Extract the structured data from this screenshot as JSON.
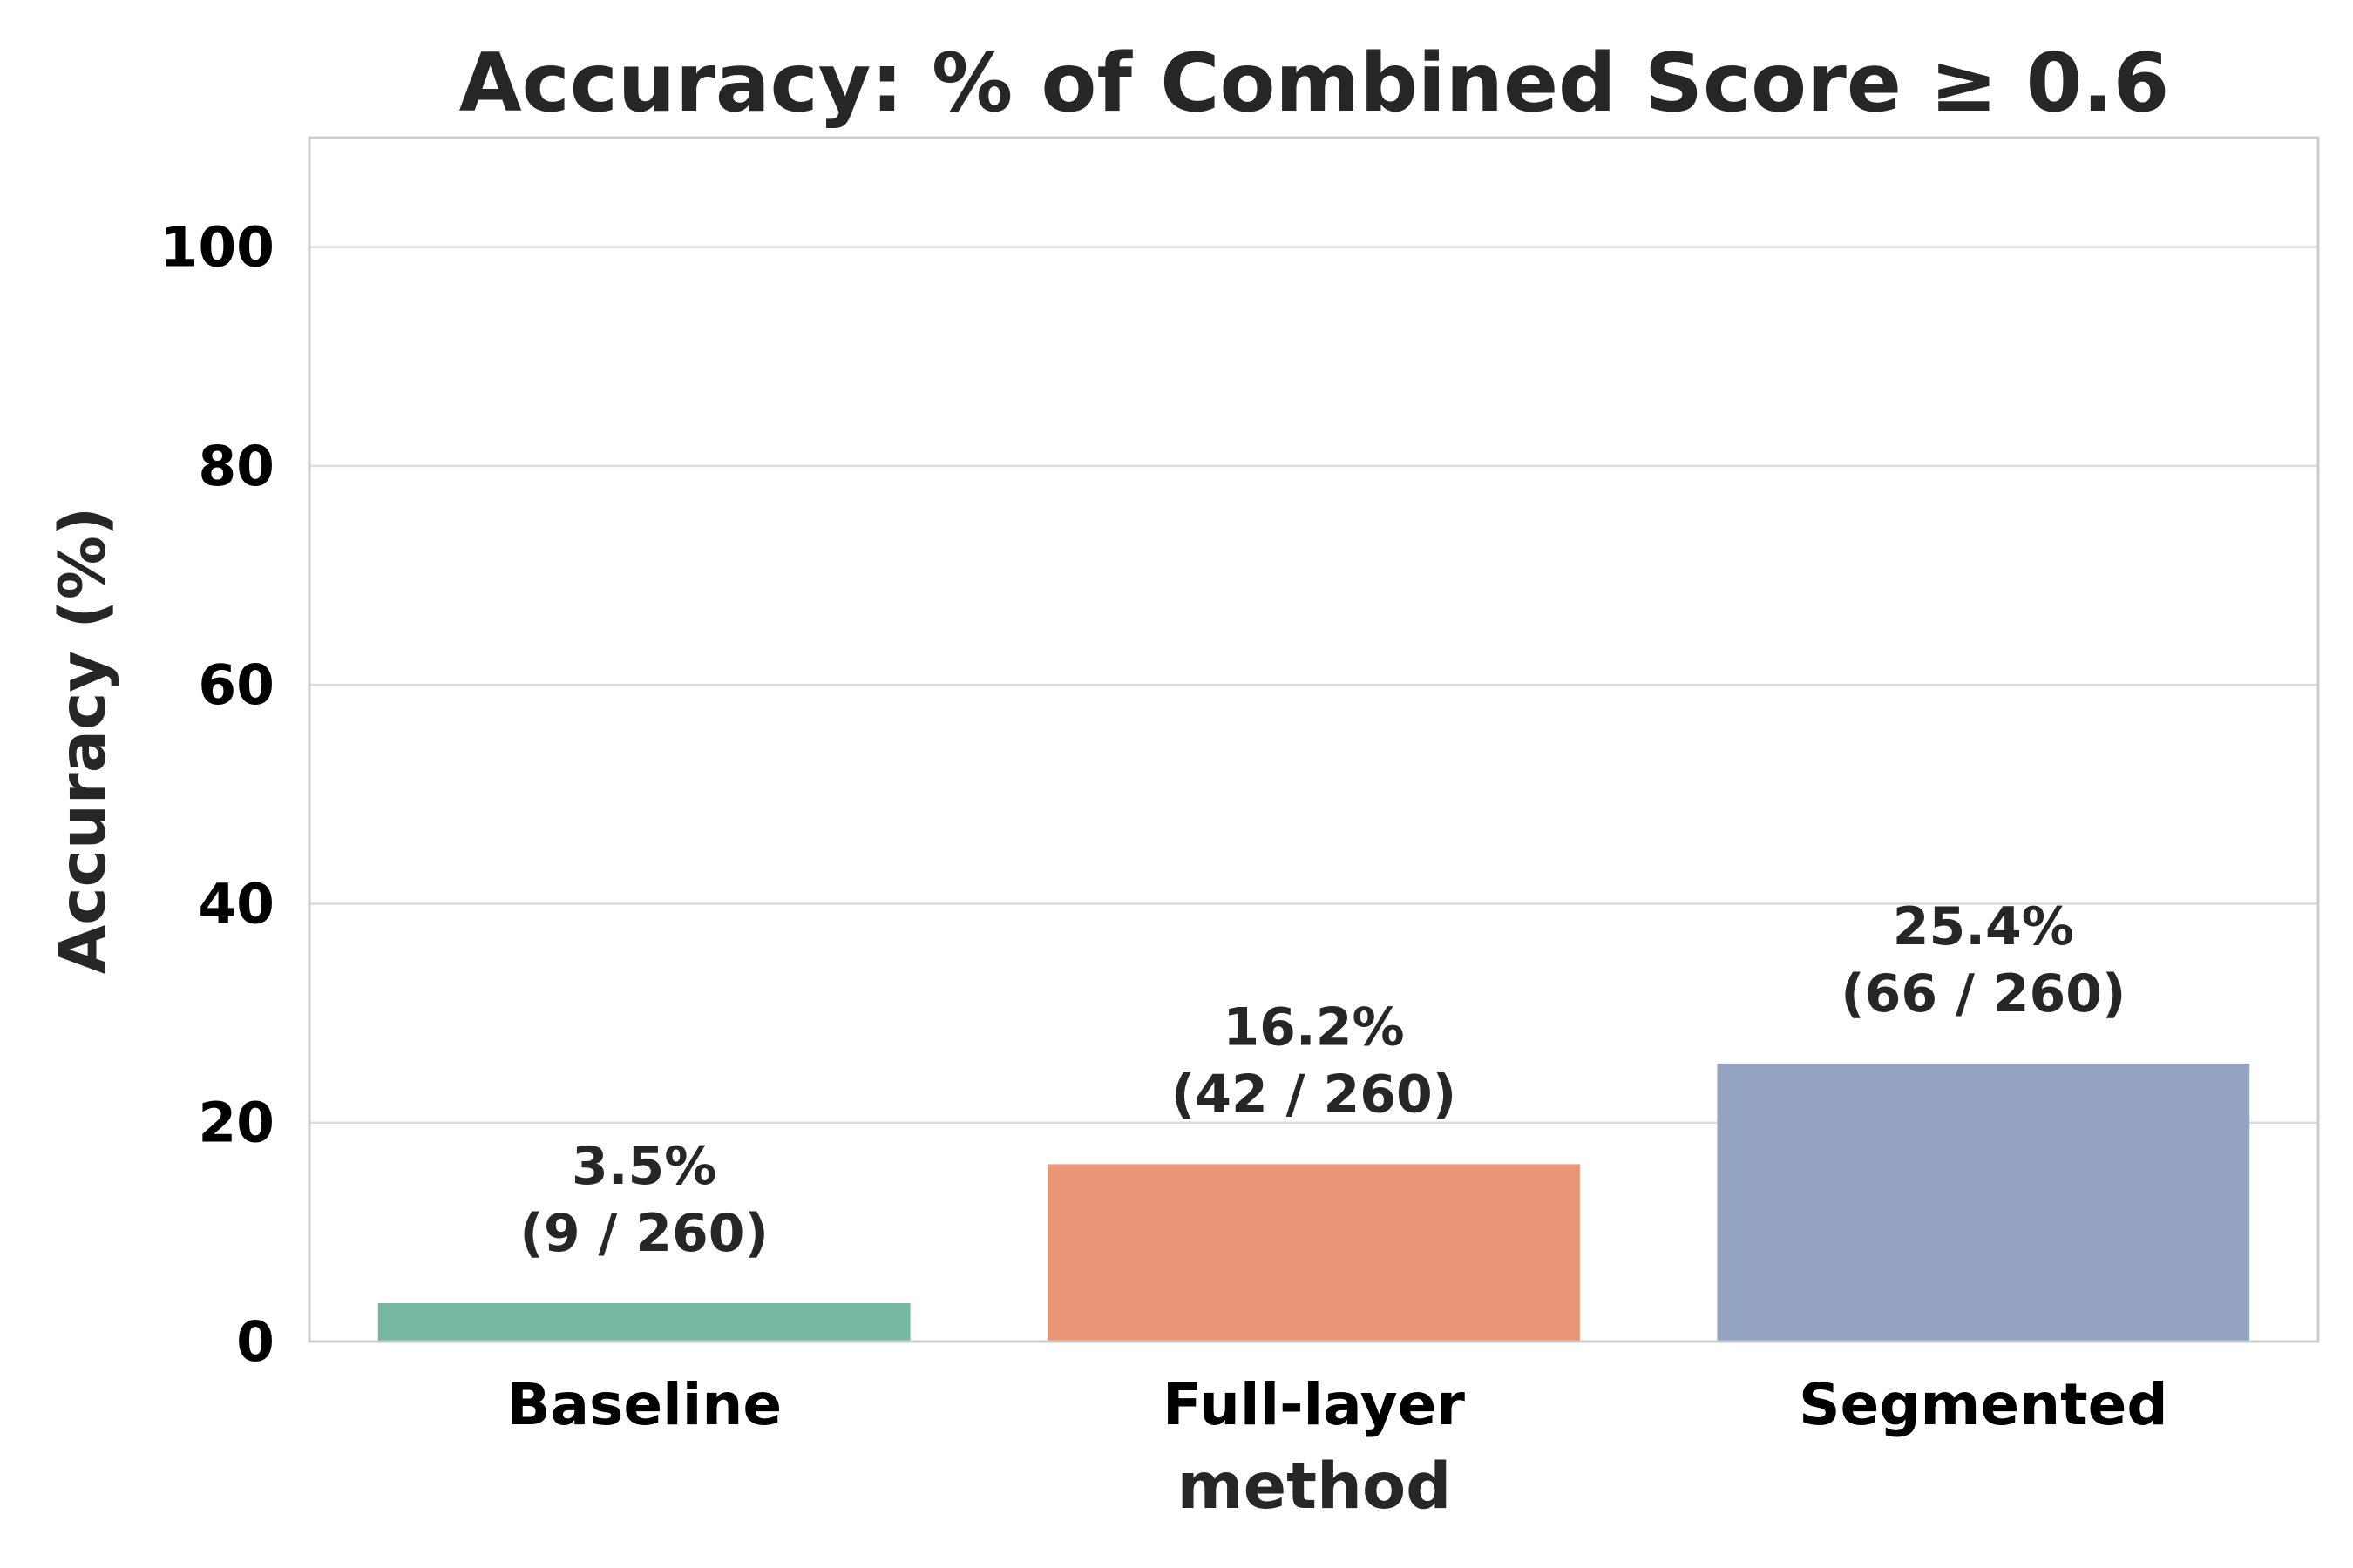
{
  "chart_data": {
    "type": "bar",
    "title": "Accuracy: % of Combined Score ≥ 0.6",
    "xlabel": "method",
    "ylabel": "Accuracy (%)",
    "categories": [
      "Baseline",
      "Full-layer",
      "Segmented"
    ],
    "values": [
      3.5,
      16.2,
      25.4
    ],
    "value_labels": [
      "3.5%",
      "16.2%",
      "25.4%"
    ],
    "count_labels": [
      "(9 / 260)",
      "(42 / 260)",
      "(66 / 260)"
    ],
    "colors": [
      "#76b7a0",
      "#e89675",
      "#95a3c2"
    ],
    "ylim": [
      0,
      110
    ],
    "yticks": [
      0,
      20,
      40,
      60,
      80,
      100
    ],
    "grid": true,
    "legend": "none"
  }
}
